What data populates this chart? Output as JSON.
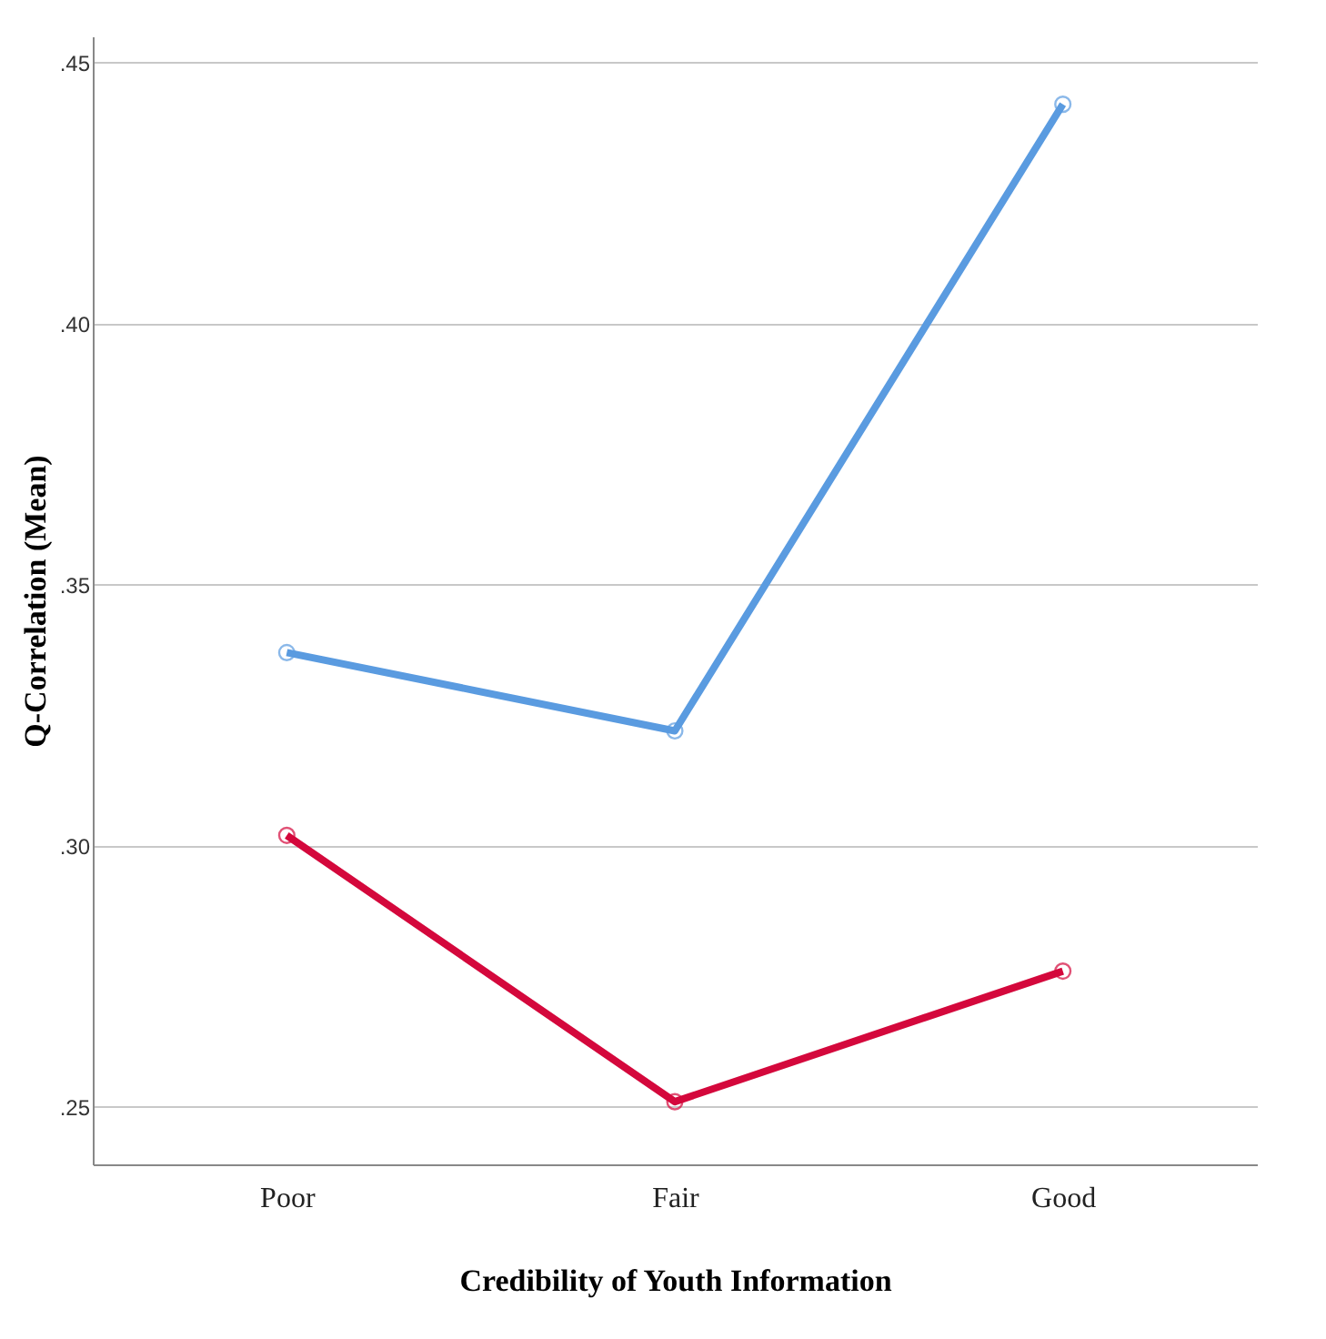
{
  "chart_data": {
    "type": "line",
    "xlabel": "Credibility of Youth Information",
    "ylabel": "Q-Correlation (Mean)",
    "categories": [
      "Poor",
      "Fair",
      "Good"
    ],
    "series": [
      {
        "color": "#5a9be0",
        "values": [
          0.337,
          0.322,
          0.442
        ]
      },
      {
        "color": "#d4083c",
        "values": [
          0.302,
          0.251,
          0.276
        ]
      }
    ],
    "ylim": [
      0.239,
      0.455
    ],
    "yticks": [
      {
        "value": 0.25,
        "label": ".25"
      },
      {
        "value": 0.3,
        "label": ".30"
      },
      {
        "value": 0.35,
        "label": ".35"
      },
      {
        "value": 0.4,
        "label": ".40"
      },
      {
        "value": 0.45,
        "label": ".45"
      }
    ],
    "grid": "y",
    "marker": "circle",
    "line_style": "solid"
  }
}
